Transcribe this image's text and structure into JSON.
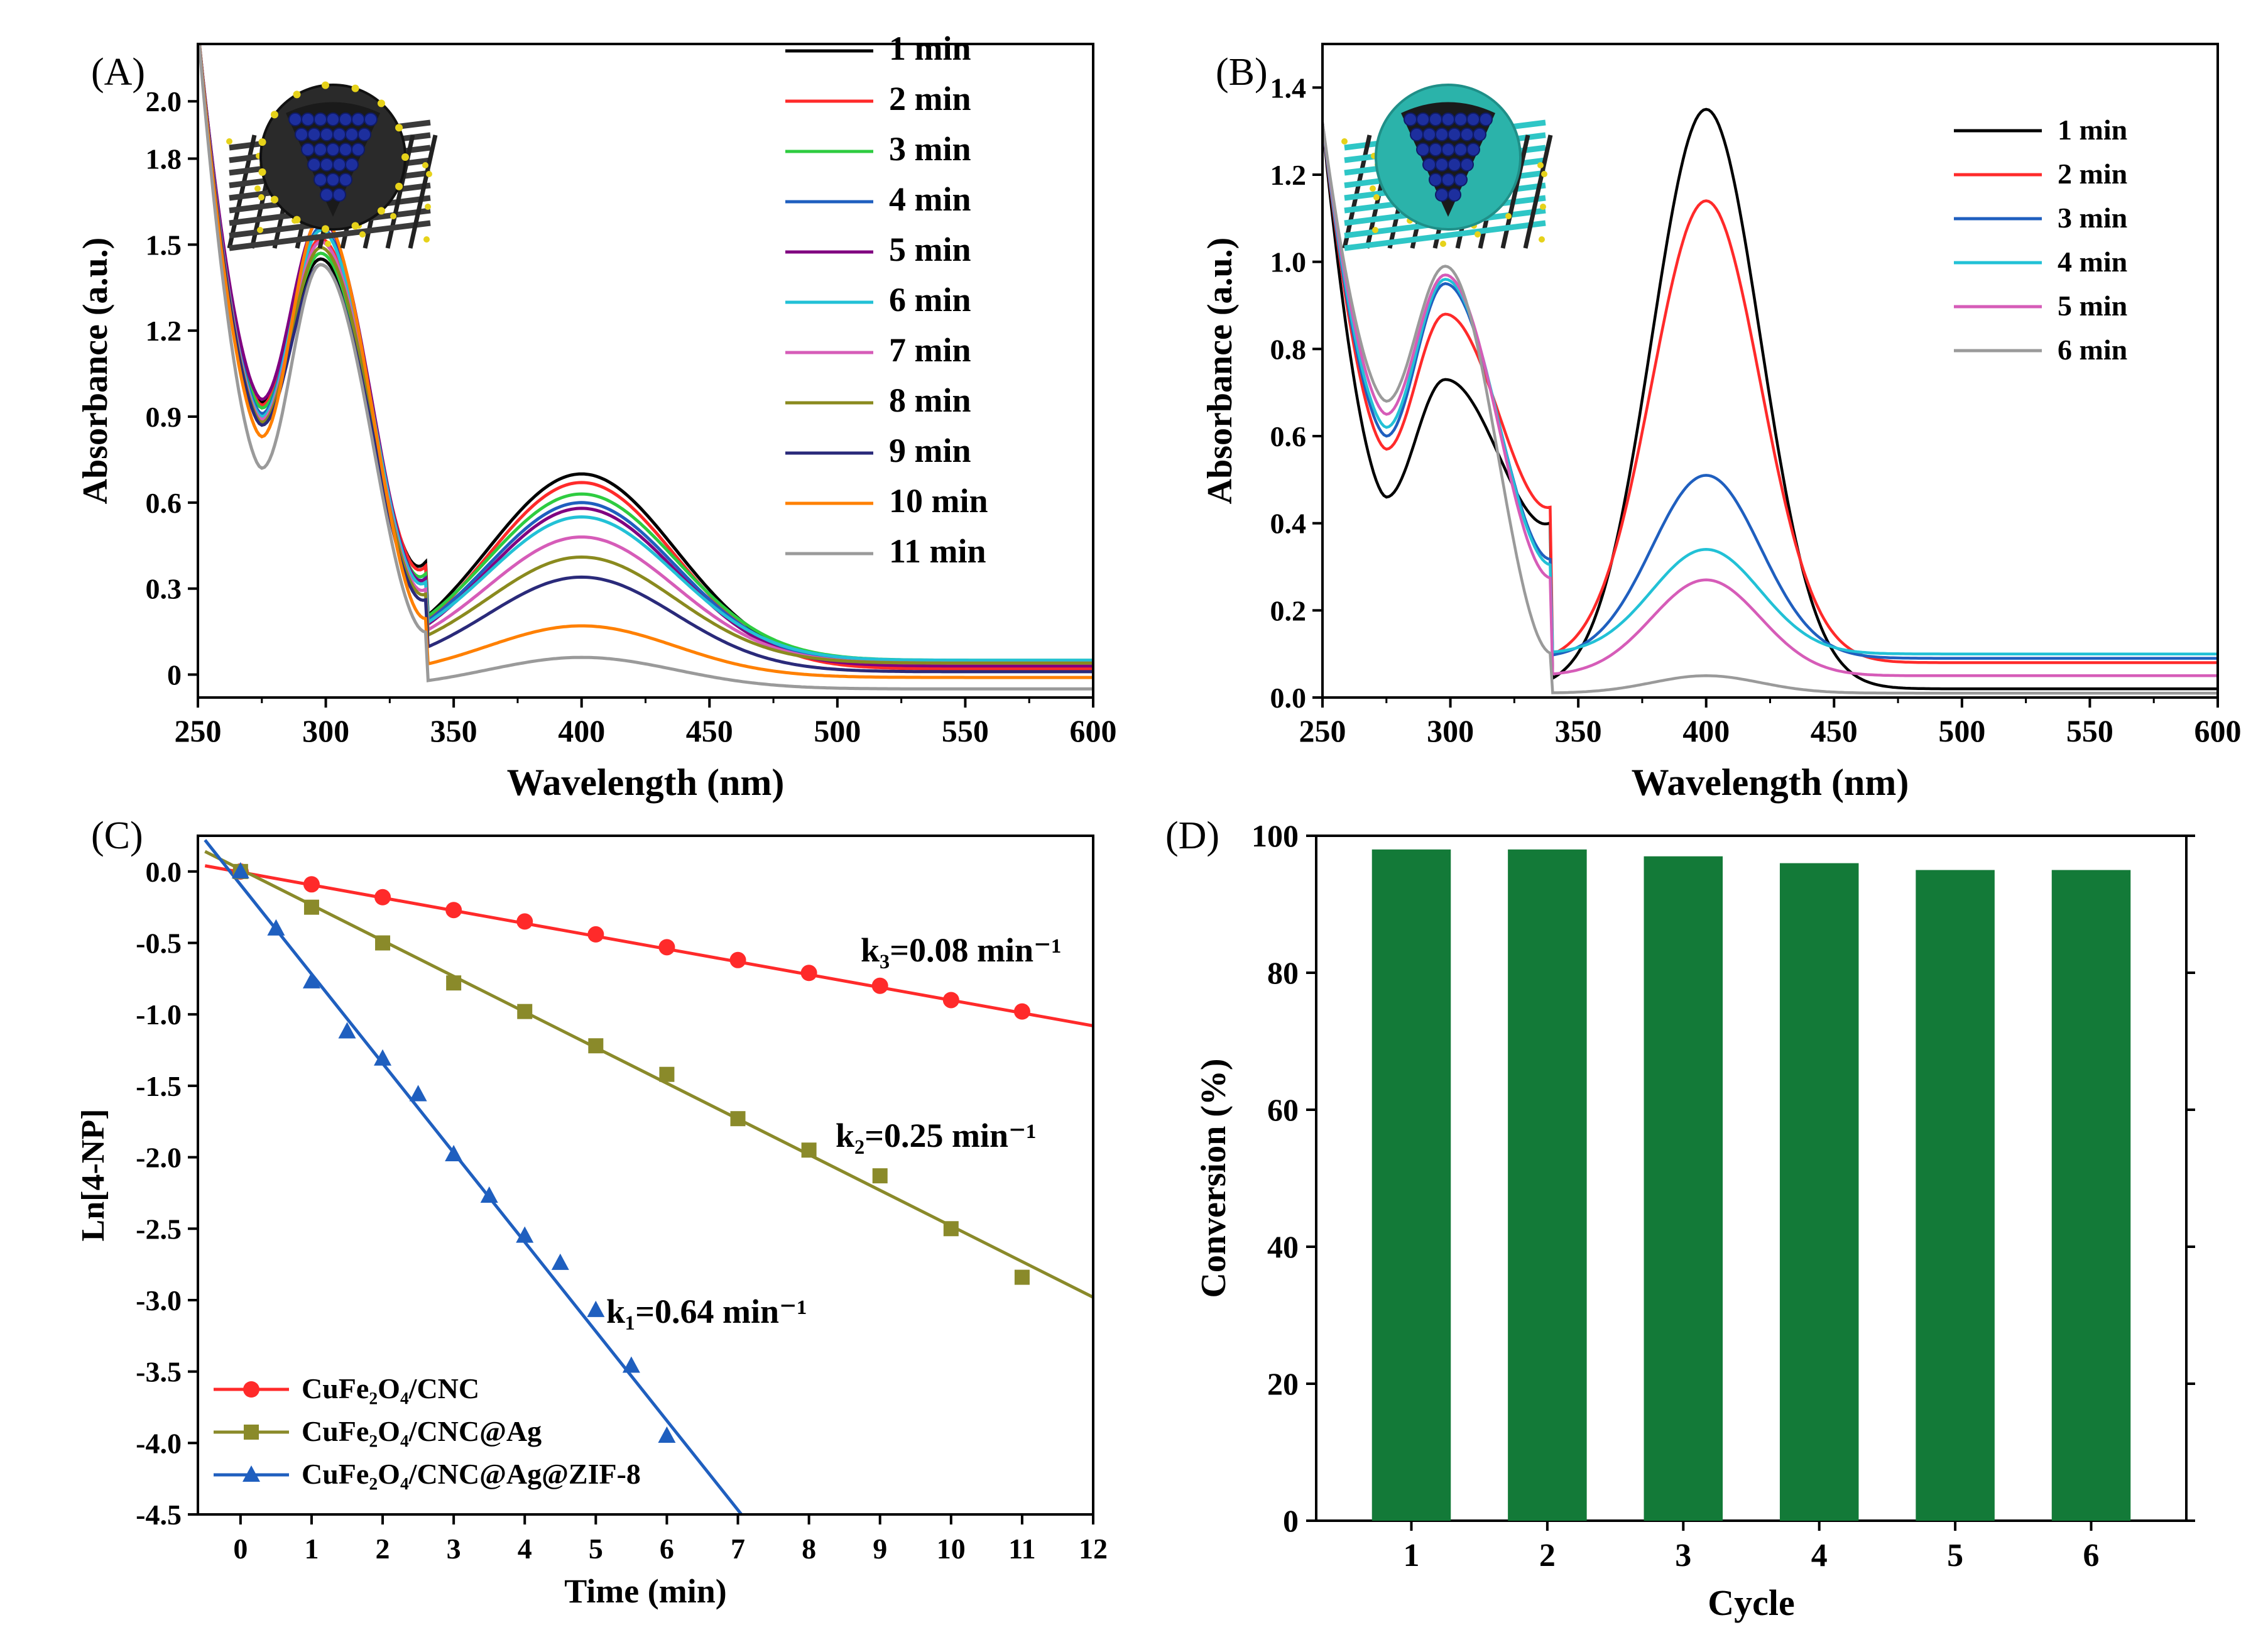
{
  "chart_data": [
    {
      "panel": "(A)",
      "type": "line",
      "xlabel": "Wavelength (nm)",
      "ylabel": "Absorbance (a.u.)",
      "xlim": [
        250,
        600
      ],
      "ylim": [
        -0.08,
        2.2
      ],
      "xticks": [
        250,
        300,
        350,
        400,
        450,
        500,
        550,
        600
      ],
      "yticks": [
        "0",
        "0.3",
        "0.6",
        "0.9",
        "1.2",
        "1.5",
        "1.8",
        "2.0"
      ],
      "ytick_values": [
        0,
        0.3,
        0.6,
        0.9,
        1.2,
        1.5,
        1.8,
        2.0
      ],
      "legend_position": "top-right",
      "series": [
        {
          "name": "1 min",
          "color": "#000000",
          "valley": 0.95,
          "peak1": 1.45,
          "trough": 0.23,
          "peak2": 0.7,
          "tail": 0.03
        },
        {
          "name": "2 min",
          "color": "#ff2a2a",
          "valley": 0.94,
          "peak1": 1.52,
          "trough": 0.22,
          "peak2": 0.67,
          "tail": 0.02
        },
        {
          "name": "3 min",
          "color": "#2ecc40",
          "valley": 0.93,
          "peak1": 1.47,
          "trough": 0.21,
          "peak2": 0.63,
          "tail": 0.05
        },
        {
          "name": "4 min",
          "color": "#1f5fbf",
          "valley": 0.91,
          "peak1": 1.56,
          "trough": 0.2,
          "peak2": 0.6,
          "tail": 0.04
        },
        {
          "name": "5 min",
          "color": "#800080",
          "valley": 0.96,
          "peak1": 1.59,
          "trough": 0.2,
          "peak2": 0.58,
          "tail": 0.03
        },
        {
          "name": "6 min",
          "color": "#22c1d6",
          "valley": 0.9,
          "peak1": 1.55,
          "trough": 0.2,
          "peak2": 0.55,
          "tail": 0.05
        },
        {
          "name": "7 min",
          "color": "#d65cb8",
          "valley": 0.89,
          "peak1": 1.51,
          "trough": 0.19,
          "peak2": 0.48,
          "tail": 0.04
        },
        {
          "name": "8 min",
          "color": "#8a8a1e",
          "valley": 0.88,
          "peak1": 1.49,
          "trough": 0.19,
          "peak2": 0.41,
          "tail": 0.04
        },
        {
          "name": "9 min",
          "color": "#2a2a7a",
          "valley": 0.87,
          "peak1": 1.43,
          "trough": 0.18,
          "peak2": 0.34,
          "tail": 0.01
        },
        {
          "name": "10 min",
          "color": "#ff8000",
          "valley": 0.83,
          "peak1": 1.6,
          "trough": 0.15,
          "peak2": 0.17,
          "tail": -0.01
        },
        {
          "name": "11 min",
          "color": "#9a9a9a",
          "valley": 0.72,
          "peak1": 1.43,
          "trough": 0.12,
          "peak2": 0.06,
          "tail": -0.05
        }
      ]
    },
    {
      "panel": "(B)",
      "type": "line",
      "xlabel": "Wavelength (nm)",
      "ylabel": "Absorbance (a.u.)",
      "xlim": [
        250,
        600
      ],
      "ylim": [
        0,
        1.5
      ],
      "xticks": [
        250,
        300,
        350,
        400,
        450,
        500,
        550,
        600
      ],
      "yticks": [
        "0.0",
        "0.2",
        "0.4",
        "0.6",
        "0.8",
        "1.0",
        "1.2",
        "1.4"
      ],
      "ytick_values": [
        0,
        0.2,
        0.4,
        0.6,
        0.8,
        1.0,
        1.2,
        1.4
      ],
      "legend_position": "top-right",
      "series": [
        {
          "name": "1 min",
          "color": "#000000",
          "valley": 0.46,
          "peak1": 0.73,
          "trough": 0.38,
          "peak2": 1.35,
          "tail": 0.02
        },
        {
          "name": "2 min",
          "color": "#ff2a2a",
          "valley": 0.57,
          "peak1": 0.88,
          "trough": 0.42,
          "peak2": 1.14,
          "tail": 0.08
        },
        {
          "name": "3 min",
          "color": "#1f5fbf",
          "valley": 0.6,
          "peak1": 0.95,
          "trough": 0.31,
          "peak2": 0.51,
          "tail": 0.09
        },
        {
          "name": "4 min",
          "color": "#22c1d6",
          "valley": 0.62,
          "peak1": 0.96,
          "trough": 0.3,
          "peak2": 0.34,
          "tail": 0.1
        },
        {
          "name": "5 min",
          "color": "#d65cb8",
          "valley": 0.65,
          "peak1": 0.97,
          "trough": 0.27,
          "peak2": 0.27,
          "tail": 0.05
        },
        {
          "name": "6 min",
          "color": "#9a9a9a",
          "valley": 0.68,
          "peak1": 0.99,
          "trough": 0.1,
          "peak2": 0.05,
          "tail": 0.01
        }
      ]
    },
    {
      "panel": "(C)",
      "type": "scatter",
      "xlabel": "Time (min)",
      "ylabel": "Ln[4-NP]",
      "xlim": [
        -0.6,
        12
      ],
      "ylim": [
        -4.5,
        0.25
      ],
      "xticks": [
        0,
        1,
        2,
        3,
        4,
        5,
        6,
        7,
        8,
        9,
        10,
        11,
        12
      ],
      "yticks": [
        "0.0",
        "-0.5",
        "-1.0",
        "-1.5",
        "-2.0",
        "-2.5",
        "-3.0",
        "-3.5",
        "-4.0",
        "-4.5"
      ],
      "ytick_values": [
        0,
        -0.5,
        -1.0,
        -1.5,
        -2.0,
        -2.5,
        -3.0,
        -3.5,
        -4.0,
        -4.5
      ],
      "legend_position": "bottom-left",
      "series": [
        {
          "name": "CuFe2O4/CNC",
          "legend_label": "CuFe₂O₄/CNC",
          "color": "#ff2a2a",
          "marker": "circle",
          "x": [
            0,
            1,
            2,
            3,
            4,
            5,
            6,
            7,
            8,
            9,
            10,
            11
          ],
          "y": [
            0,
            -0.09,
            -0.18,
            -0.27,
            -0.35,
            -0.44,
            -0.53,
            -0.62,
            -0.71,
            -0.8,
            -0.9,
            -0.98
          ],
          "fit": {
            "x0": -0.5,
            "y0": 0.04,
            "x1": 12,
            "y1": -1.08
          },
          "rate_label": "k₃=0.08 min⁻¹"
        },
        {
          "name": "CuFe2O4/CNC@Ag",
          "legend_label": "CuFe₂O₄/CNC@Ag",
          "color": "#8a8a2a",
          "marker": "square",
          "x": [
            0,
            1,
            2,
            3,
            4,
            5,
            6,
            7,
            8,
            9,
            10,
            11
          ],
          "y": [
            0,
            -0.25,
            -0.5,
            -0.78,
            -0.98,
            -1.22,
            -1.42,
            -1.73,
            -1.95,
            -2.13,
            -2.5,
            -2.84
          ],
          "fit": {
            "x0": -0.5,
            "y0": 0.14,
            "x1": 12,
            "y1": -2.98
          },
          "rate_label": "k₂=0.25 min⁻¹"
        },
        {
          "name": "CuFe2O4/CNC@Ag@ZIF-8",
          "legend_label": "CuFe₂O₄/CNC@Ag@ZIF-8",
          "color": "#1f5fbf",
          "marker": "triangle",
          "x": [
            0,
            0.5,
            1,
            1.5,
            2,
            2.5,
            3,
            3.5,
            4,
            4.5,
            5,
            5.5,
            6
          ],
          "y": [
            0,
            -0.4,
            -0.77,
            -1.12,
            -1.31,
            -1.56,
            -1.98,
            -2.27,
            -2.55,
            -2.74,
            -3.07,
            -3.46,
            -3.95
          ],
          "fit": {
            "x0": -0.5,
            "y0": 0.22,
            "x1": 7.05,
            "y1": -4.5
          },
          "rate_label": "k₁=0.64 min⁻¹"
        }
      ]
    },
    {
      "panel": "(D)",
      "type": "bar",
      "xlabel": "Cycle",
      "ylabel": "Conversion (%)",
      "categories": [
        "1",
        "2",
        "3",
        "4",
        "5",
        "6"
      ],
      "values": [
        98,
        98,
        97,
        96,
        95,
        95
      ],
      "ylim": [
        0,
        100
      ],
      "yticks": [
        "0",
        "20",
        "40",
        "60",
        "80",
        "100"
      ],
      "ytick_values": [
        0,
        20,
        40,
        60,
        80,
        100
      ],
      "bar_color": "#137a38"
    }
  ]
}
